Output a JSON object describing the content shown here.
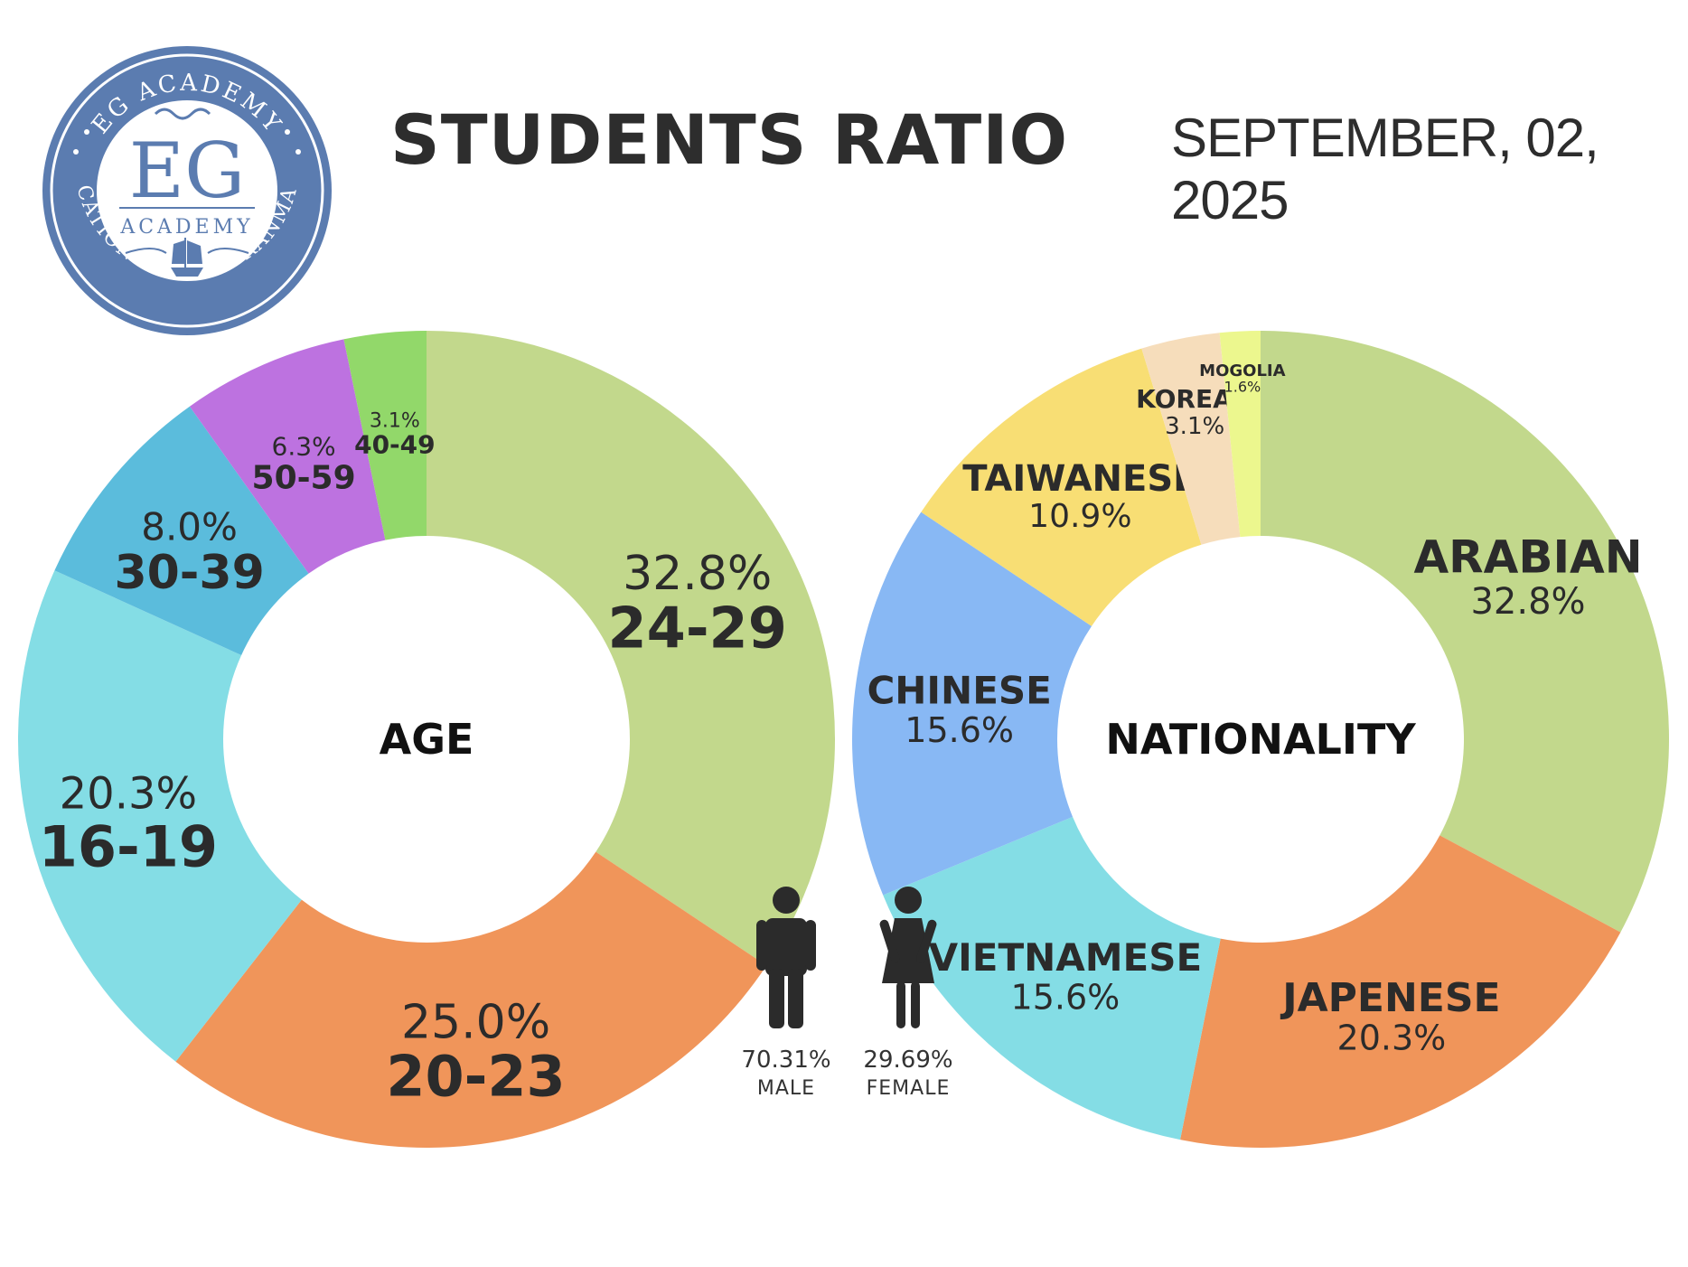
{
  "header": {
    "title": "STUDENTS RATIO",
    "date": "SEPTEMBER, 02, 2025"
  },
  "logo": {
    "top_text": "EG ACADEMY",
    "monogram": "EG",
    "sub_text": "ACADEMY",
    "bottom_text": "EDUCATION GROUP GRANMA INC"
  },
  "chart_data": [
    {
      "type": "pie",
      "title": "AGE",
      "categories": [
        "24-29",
        "20-23",
        "16-19",
        "30-39",
        "50-59",
        "40-49"
      ],
      "values": [
        32.8,
        25.0,
        20.3,
        8.0,
        6.3,
        3.1
      ],
      "value_labels": [
        "32.8%",
        "25.0%",
        "20.3%",
        "8.0%",
        "6.3%",
        "3.1%"
      ],
      "colors": [
        "#c2d88c",
        "#f0955a",
        "#84dde5",
        "#5bbcdc",
        "#bd72e0",
        "#92d86a"
      ]
    },
    {
      "type": "pie",
      "title": "NATIONALITY",
      "categories": [
        "ARABIAN",
        "JAPENESE",
        "VIETNAMESE",
        "CHINESE",
        "TAIWANESE",
        "KOREAN",
        "MOGOLIA"
      ],
      "values": [
        32.8,
        20.3,
        15.6,
        15.6,
        10.9,
        3.1,
        1.6
      ],
      "value_labels": [
        "32.8%",
        "20.3%",
        "15.6%",
        "15.6%",
        "10.9%",
        "3.1%",
        "1.6%"
      ],
      "colors": [
        "#c2d88c",
        "#f0955a",
        "#84dde5",
        "#88b8f4",
        "#f8de74",
        "#f6ddbb",
        "#ecf78e"
      ]
    }
  ],
  "gender": {
    "male": {
      "pct": "70.31%",
      "label": "MALE",
      "value": 70.31
    },
    "female": {
      "pct": "29.69%",
      "label": "FEMALE",
      "value": 29.69
    }
  }
}
